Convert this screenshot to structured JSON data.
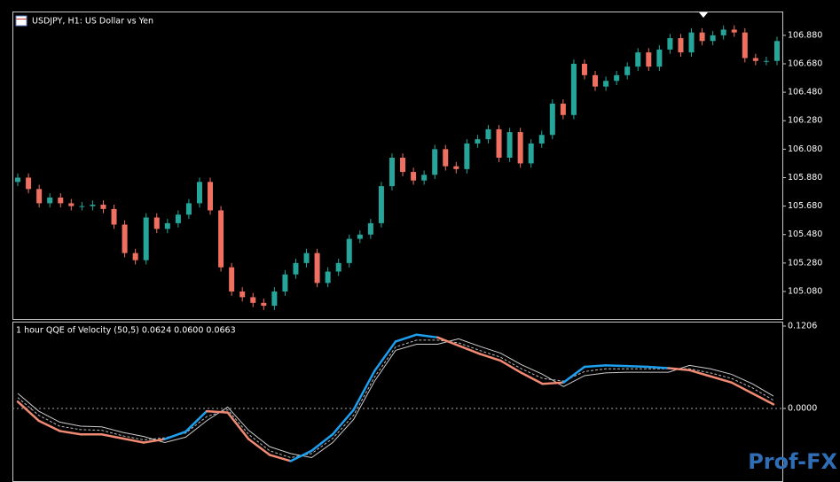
{
  "chart_data": [
    {
      "type": "candlestick",
      "title": "USDJPY, H1:  US Dollar vs Yen",
      "up_color": "#26a69a",
      "down_color": "#ef7060",
      "ylim": [
        104.887,
        107.041
      ],
      "yticks": [
        {
          "value": 106.88,
          "label": "106.880"
        },
        {
          "value": 106.68,
          "label": "106.680"
        },
        {
          "value": 106.48,
          "label": "106.480"
        },
        {
          "value": 106.28,
          "label": "106.280"
        },
        {
          "value": 106.08,
          "label": "106.080"
        },
        {
          "value": 105.88,
          "label": "105.880"
        },
        {
          "value": 105.68,
          "label": "105.680"
        },
        {
          "value": 105.48,
          "label": "105.480"
        },
        {
          "value": 105.28,
          "label": "105.280"
        },
        {
          "value": 105.08,
          "label": "105.080"
        }
      ],
      "candles": [
        [
          105.85,
          105.91,
          105.82,
          105.88
        ],
        [
          105.88,
          105.91,
          105.77,
          105.8
        ],
        [
          105.8,
          105.83,
          105.67,
          105.7
        ],
        [
          105.7,
          105.77,
          105.67,
          105.74
        ],
        [
          105.74,
          105.77,
          105.67,
          105.7
        ],
        [
          105.7,
          105.73,
          105.65,
          105.68
        ],
        [
          105.68,
          105.71,
          105.65,
          105.68
        ],
        [
          105.68,
          105.72,
          105.65,
          105.69
        ],
        [
          105.69,
          105.72,
          105.63,
          105.66
        ],
        [
          105.66,
          105.69,
          105.52,
          105.55
        ],
        [
          105.55,
          105.58,
          105.32,
          105.35
        ],
        [
          105.35,
          105.38,
          105.27,
          105.3
        ],
        [
          105.3,
          105.63,
          105.27,
          105.6
        ],
        [
          105.6,
          105.63,
          105.49,
          105.52
        ],
        [
          105.52,
          105.59,
          105.49,
          105.56
        ],
        [
          105.56,
          105.65,
          105.53,
          105.62
        ],
        [
          105.62,
          105.73,
          105.59,
          105.7
        ],
        [
          105.7,
          105.88,
          105.67,
          105.85
        ],
        [
          105.85,
          105.88,
          105.62,
          105.65
        ],
        [
          105.65,
          105.68,
          105.22,
          105.25
        ],
        [
          105.25,
          105.28,
          105.05,
          105.08
        ],
        [
          105.08,
          105.11,
          105.01,
          105.04
        ],
        [
          105.04,
          105.07,
          104.97,
          105.0
        ],
        [
          105.0,
          105.03,
          104.95,
          104.98
        ],
        [
          104.98,
          105.11,
          104.95,
          105.08
        ],
        [
          105.08,
          105.23,
          105.05,
          105.2
        ],
        [
          105.2,
          105.31,
          105.17,
          105.28
        ],
        [
          105.28,
          105.38,
          105.25,
          105.35
        ],
        [
          105.35,
          105.38,
          105.11,
          105.14
        ],
        [
          105.14,
          105.25,
          105.11,
          105.22
        ],
        [
          105.22,
          105.31,
          105.19,
          105.28
        ],
        [
          105.28,
          105.48,
          105.25,
          105.45
        ],
        [
          105.45,
          105.51,
          105.42,
          105.48
        ],
        [
          105.48,
          105.59,
          105.45,
          105.56
        ],
        [
          105.56,
          105.85,
          105.53,
          105.82
        ],
        [
          105.82,
          106.05,
          105.79,
          106.02
        ],
        [
          106.02,
          106.05,
          105.89,
          105.92
        ],
        [
          105.92,
          105.95,
          105.83,
          105.86
        ],
        [
          105.86,
          105.93,
          105.83,
          105.9
        ],
        [
          105.9,
          106.11,
          105.87,
          106.08
        ],
        [
          106.08,
          106.11,
          105.93,
          105.96
        ],
        [
          105.96,
          105.99,
          105.91,
          105.94
        ],
        [
          105.94,
          106.15,
          105.91,
          106.12
        ],
        [
          106.12,
          106.18,
          106.09,
          106.15
        ],
        [
          106.15,
          106.25,
          106.12,
          106.22
        ],
        [
          106.22,
          106.25,
          105.99,
          106.02
        ],
        [
          106.02,
          106.23,
          105.99,
          106.2
        ],
        [
          106.2,
          106.23,
          105.95,
          105.98
        ],
        [
          105.98,
          106.15,
          105.95,
          106.12
        ],
        [
          106.12,
          106.21,
          106.09,
          106.18
        ],
        [
          106.18,
          106.43,
          106.15,
          106.4
        ],
        [
          106.4,
          106.43,
          106.29,
          106.32
        ],
        [
          106.32,
          106.71,
          106.29,
          106.68
        ],
        [
          106.68,
          106.71,
          106.57,
          106.6
        ],
        [
          106.6,
          106.63,
          106.49,
          106.52
        ],
        [
          106.52,
          106.59,
          106.49,
          106.56
        ],
        [
          106.56,
          106.63,
          106.53,
          106.6
        ],
        [
          106.6,
          106.69,
          106.57,
          106.66
        ],
        [
          106.66,
          106.79,
          106.63,
          106.76
        ],
        [
          106.76,
          106.79,
          106.63,
          106.66
        ],
        [
          106.66,
          106.81,
          106.63,
          106.78
        ],
        [
          106.78,
          106.89,
          106.75,
          106.86
        ],
        [
          106.86,
          106.89,
          106.73,
          106.76
        ],
        [
          106.76,
          106.93,
          106.73,
          106.9
        ],
        [
          106.9,
          106.93,
          106.81,
          106.84
        ],
        [
          106.84,
          106.91,
          106.81,
          106.88
        ],
        [
          106.88,
          106.95,
          106.85,
          106.92
        ],
        [
          106.92,
          106.95,
          106.87,
          106.9
        ],
        [
          106.9,
          106.93,
          106.69,
          106.72
        ],
        [
          106.72,
          106.75,
          106.67,
          106.7
        ],
        [
          106.7,
          106.73,
          106.67,
          106.7
        ],
        [
          106.7,
          106.87,
          106.67,
          106.84
        ]
      ]
    },
    {
      "type": "line",
      "title": "1 hour QQE of Velocity (50,5) 0.0624 0.0600 0.0663",
      "up_color": "#1ea0f0",
      "down_color": "#f08a72",
      "ylim": [
        -0.0999,
        0.1258
      ],
      "yticks": [
        {
          "value": 0.1206,
          "label": "0.1206"
        },
        {
          "value": 0,
          "label": "0.0000"
        }
      ],
      "series": [
        {
          "name": "QQE",
          "values": [
            0.01,
            -0.018,
            -0.033,
            -0.038,
            -0.038,
            -0.044,
            -0.05,
            -0.045,
            -0.034,
            -0.004,
            -0.006,
            -0.045,
            -0.068,
            -0.077,
            -0.062,
            -0.038,
            -0.002,
            0.055,
            0.098,
            0.108,
            0.104,
            0.092,
            0.08,
            0.07,
            0.052,
            0.036,
            0.038,
            0.061,
            0.063,
            0.062,
            0.061,
            0.059,
            0.056,
            0.047,
            0.038,
            0.022,
            0.006
          ]
        },
        {
          "name": "Signal",
          "color": "#bbbbbb",
          "values": [
            0.016,
            -0.01,
            -0.026,
            -0.031,
            -0.032,
            -0.04,
            -0.046,
            -0.043,
            -0.036,
            -0.012,
            -0.002,
            -0.038,
            -0.062,
            -0.072,
            -0.066,
            -0.044,
            -0.01,
            0.046,
            0.09,
            0.1,
            0.1,
            0.096,
            0.085,
            0.075,
            0.058,
            0.044,
            0.04,
            0.054,
            0.058,
            0.058,
            0.058,
            0.058,
            0.058,
            0.052,
            0.044,
            0.03,
            0.012
          ]
        },
        {
          "name": "Band",
          "color": "#cccccc",
          "values": [
            0.022,
            -0.004,
            -0.02,
            -0.026,
            -0.027,
            -0.035,
            -0.041,
            -0.05,
            -0.042,
            -0.018,
            0.002,
            -0.032,
            -0.056,
            -0.066,
            -0.072,
            -0.05,
            -0.016,
            0.04,
            0.085,
            0.094,
            0.094,
            0.102,
            0.091,
            0.081,
            0.064,
            0.05,
            0.032,
            0.048,
            0.052,
            0.053,
            0.053,
            0.053,
            0.063,
            0.058,
            0.05,
            0.036,
            0.018
          ]
        }
      ]
    }
  ],
  "watermark": "Prof-FX"
}
